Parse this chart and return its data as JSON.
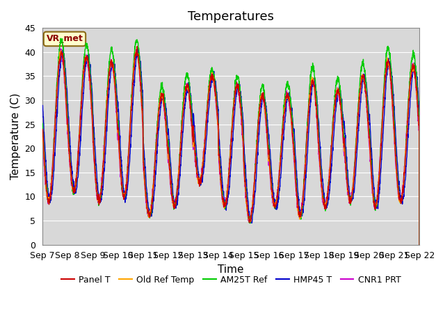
{
  "title": "Temperatures",
  "xlabel": "Time",
  "ylabel": "Temperature (C)",
  "ylim": [
    0,
    45
  ],
  "x_tick_labels": [
    "Sep 7",
    "Sep 8",
    "Sep 9",
    "Sep 10",
    "Sep 11",
    "Sep 12",
    "Sep 13",
    "Sep 14",
    "Sep 15",
    "Sep 16",
    "Sep 17",
    "Sep 18",
    "Sep 19",
    "Sep 20",
    "Sep 21",
    "Sep 22"
  ],
  "yticks": [
    0,
    5,
    10,
    15,
    20,
    25,
    30,
    35,
    40,
    45
  ],
  "bg_color": "#d8d8d8",
  "fig_color": "#ffffff",
  "annotation_text": "VR_met",
  "annotation_color": "#8b0000",
  "annotation_bg": "#ffffcc",
  "line_colors": {
    "Panel T": "#cc0000",
    "Old Ref Temp": "#ffa500",
    "AM25T Ref": "#00cc00",
    "HMP45 T": "#0000cc",
    "CNR1 PRT": "#cc00cc"
  },
  "daily_mins": [
    9,
    11,
    9,
    10,
    6,
    8,
    13,
    8,
    5,
    8,
    6,
    8,
    9,
    8,
    9
  ],
  "daily_maxs": [
    40,
    39,
    38,
    40,
    31,
    33,
    35,
    33,
    31,
    31,
    34,
    32,
    35,
    38,
    37
  ],
  "am25_boost": [
    2.5,
    2.5,
    2.5,
    2.5,
    2.0,
    2.5,
    1.5,
    2.0,
    2.0,
    2.5,
    3.0,
    2.5,
    2.5,
    3.0,
    2.5
  ],
  "title_fontsize": 13,
  "axis_fontsize": 11,
  "tick_fontsize": 9,
  "legend_fontsize": 9
}
